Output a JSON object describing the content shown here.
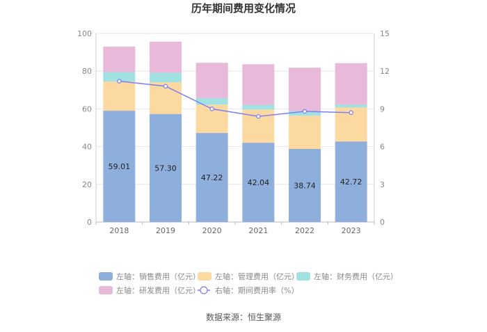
{
  "chart_data": {
    "type": "bar",
    "stacked": true,
    "title": "历年期间费用变化情况",
    "categories": [
      "2018",
      "2019",
      "2020",
      "2021",
      "2022",
      "2023"
    ],
    "left_axis": {
      "min": 0,
      "max": 100,
      "ticks": [
        "0",
        "20",
        "40",
        "60",
        "80",
        "100"
      ]
    },
    "right_axis": {
      "min": 0,
      "max": 15,
      "ticks": [
        "0",
        "3",
        "6",
        "9",
        "12",
        "15"
      ]
    },
    "series": [
      {
        "name": "左轴：销售费用（亿元）",
        "axis": "left",
        "color": "#8eaedc",
        "values": [
          59.01,
          57.3,
          47.22,
          42.04,
          38.74,
          42.72
        ],
        "labels": [
          "59.01",
          "57.30",
          "47.22",
          "42.04",
          "38.74",
          "42.72"
        ]
      },
      {
        "name": "左轴：管理费用（亿元）",
        "axis": "left",
        "color": "#fcd9a1",
        "values": [
          15.5,
          16.8,
          15.0,
          17.6,
          17.6,
          18.0
        ]
      },
      {
        "name": "左轴：财务费用（亿元）",
        "axis": "left",
        "color": "#a2e1e1",
        "values": [
          5.0,
          5.0,
          3.5,
          2.5,
          2.5,
          1.5
        ]
      },
      {
        "name": "左轴：研发费用（亿元）",
        "axis": "left",
        "color": "#e8b9d9",
        "values": [
          13.5,
          16.5,
          18.7,
          21.5,
          23.0,
          22.0
        ]
      },
      {
        "name": "右轴：期间费用率（%）",
        "axis": "right",
        "type": "line",
        "color": "#7c7ff0",
        "values": [
          11.2,
          10.8,
          9.0,
          8.4,
          8.8,
          8.7
        ]
      }
    ],
    "source": "数据来源：恒生聚源"
  }
}
